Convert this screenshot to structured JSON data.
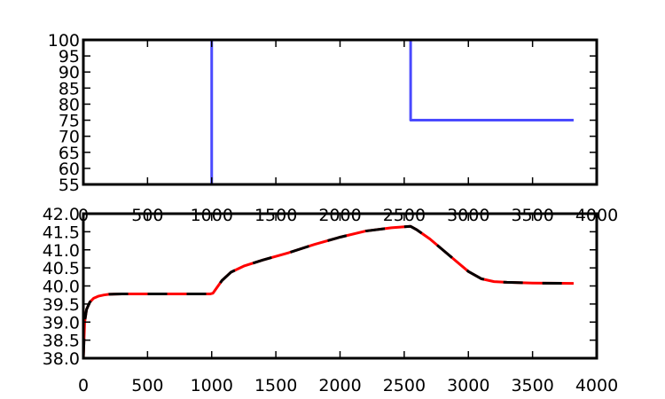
{
  "chart_data": [
    {
      "type": "line",
      "title": "",
      "xlabel": "",
      "ylabel": "",
      "xlim": [
        0,
        4000
      ],
      "ylim": [
        55,
        100
      ],
      "x_ticks": [
        "0",
        "500",
        "1000",
        "1500",
        "2000",
        "2500",
        "3000",
        "3500",
        "4000"
      ],
      "y_ticks": [
        "55",
        "60",
        "65",
        "70",
        "75",
        "80",
        "85",
        "90",
        "95",
        "100"
      ],
      "grid": false,
      "series": [
        {
          "color": "#4a4aff",
          "style": "solid",
          "x": [
            0,
            1000,
            1000,
            2550,
            2550,
            3820
          ],
          "y": [
            55,
            55,
            100,
            100,
            75,
            75
          ]
        }
      ]
    },
    {
      "type": "line",
      "title": "",
      "xlabel": "",
      "ylabel": "",
      "xlim": [
        0,
        4000
      ],
      "ylim": [
        38.0,
        42.0
      ],
      "x_ticks": [
        "0",
        "500",
        "1000",
        "1500",
        "2000",
        "2500",
        "3000",
        "3500",
        "4000"
      ],
      "y_ticks": [
        "38.0",
        "38.5",
        "39.0",
        "39.5",
        "40.0",
        "40.5",
        "41.0",
        "41.5",
        "42.0"
      ],
      "grid": false,
      "series": [
        {
          "color": "#ff0000",
          "style": "solid",
          "x": [
            0,
            10,
            25,
            50,
            80,
            120,
            160,
            200,
            300,
            500,
            800,
            990,
            1010,
            1040,
            1080,
            1150,
            1250,
            1400,
            1600,
            1800,
            2000,
            2200,
            2400,
            2550,
            2600,
            2700,
            2800,
            2900,
            3000,
            3100,
            3200,
            3300,
            3500,
            3820
          ],
          "y": [
            38.0,
            39.0,
            39.35,
            39.55,
            39.66,
            39.72,
            39.75,
            39.77,
            39.78,
            39.78,
            39.78,
            39.78,
            39.8,
            39.95,
            40.15,
            40.38,
            40.55,
            40.72,
            40.92,
            41.15,
            41.35,
            41.52,
            41.61,
            41.65,
            41.55,
            41.3,
            41.0,
            40.7,
            40.4,
            40.2,
            40.12,
            40.1,
            40.08,
            40.07
          ]
        },
        {
          "color": "#000000",
          "style": "dashed",
          "x": [
            0,
            10,
            25,
            50,
            80,
            120,
            160,
            200,
            300,
            500,
            800,
            990,
            1010,
            1040,
            1080,
            1150,
            1250,
            1400,
            1600,
            1800,
            2000,
            2200,
            2400,
            2550,
            2600,
            2700,
            2800,
            2900,
            3000,
            3100,
            3200,
            3300,
            3500,
            3820
          ],
          "y": [
            38.0,
            39.0,
            39.35,
            39.55,
            39.66,
            39.72,
            39.75,
            39.77,
            39.78,
            39.78,
            39.78,
            39.78,
            39.8,
            39.95,
            40.15,
            40.38,
            40.55,
            40.72,
            40.92,
            41.15,
            41.35,
            41.52,
            41.61,
            41.65,
            41.55,
            41.3,
            41.0,
            40.7,
            40.4,
            40.2,
            40.12,
            40.1,
            40.08,
            40.07
          ]
        }
      ]
    }
  ]
}
